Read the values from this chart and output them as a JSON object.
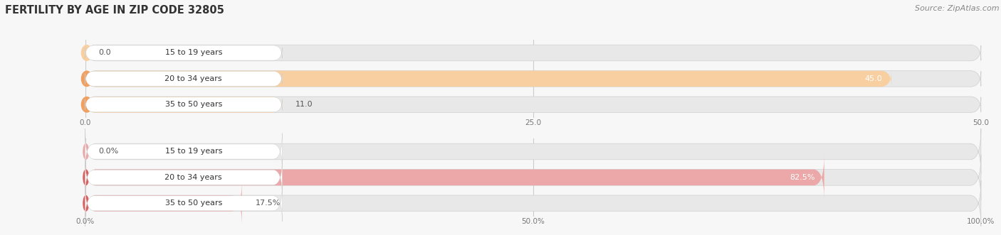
{
  "title": "FERTILITY BY AGE IN ZIP CODE 32805",
  "source": "Source: ZipAtlas.com",
  "chart1": {
    "categories": [
      "15 to 19 years",
      "20 to 34 years",
      "35 to 50 years"
    ],
    "values": [
      0.0,
      45.0,
      11.0
    ],
    "xlim": [
      0,
      50
    ],
    "xticks": [
      0.0,
      25.0,
      50.0
    ],
    "xtick_labels": [
      "0.0",
      "25.0",
      "50.0"
    ],
    "bar_color": "#F0A060",
    "bar_light_color": "#F8CFA0",
    "bg_bar_color": "#E8E8E8"
  },
  "chart2": {
    "categories": [
      "15 to 19 years",
      "20 to 34 years",
      "35 to 50 years"
    ],
    "values": [
      0.0,
      82.5,
      17.5
    ],
    "xlim": [
      0,
      100
    ],
    "xticks": [
      0.0,
      50.0,
      100.0
    ],
    "xtick_labels": [
      "0.0%",
      "50.0%",
      "100.0%"
    ],
    "bar_color": "#D96060",
    "bar_light_color": "#ECA8A8",
    "bg_bar_color": "#E8E8E8"
  },
  "title_fontsize": 10.5,
  "source_fontsize": 8,
  "label_fontsize": 8,
  "value_fontsize": 8,
  "tick_fontsize": 7.5,
  "title_color": "#333333",
  "source_color": "#888888",
  "background_color": "#F7F7F7"
}
